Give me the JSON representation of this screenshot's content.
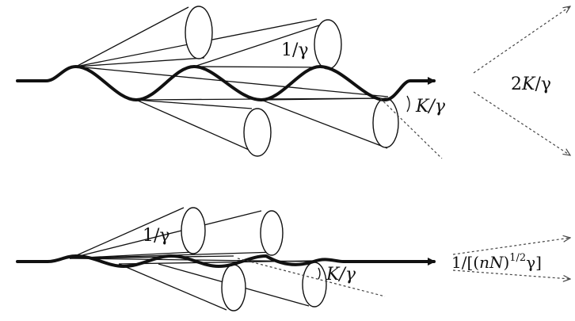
{
  "panels": [
    {
      "id": "top",
      "labels": {
        "cone_angle": "1/γ",
        "excursion_angle": "K/γ",
        "total_fan_prefix": "2",
        "total_fan_K": "K",
        "total_fan_suffix": "/γ"
      }
    },
    {
      "id": "bottom",
      "labels": {
        "cone_angle": "1/γ",
        "excursion_angle": "K/γ",
        "fan_prefix": "1/[(",
        "fan_nN": "nN",
        "fan_close": ")",
        "fan_sup": "1/2",
        "fan_suffix": "γ]"
      }
    }
  ],
  "colors": {
    "ink": "#111111",
    "dash": "#444444",
    "background": "#ffffff"
  }
}
